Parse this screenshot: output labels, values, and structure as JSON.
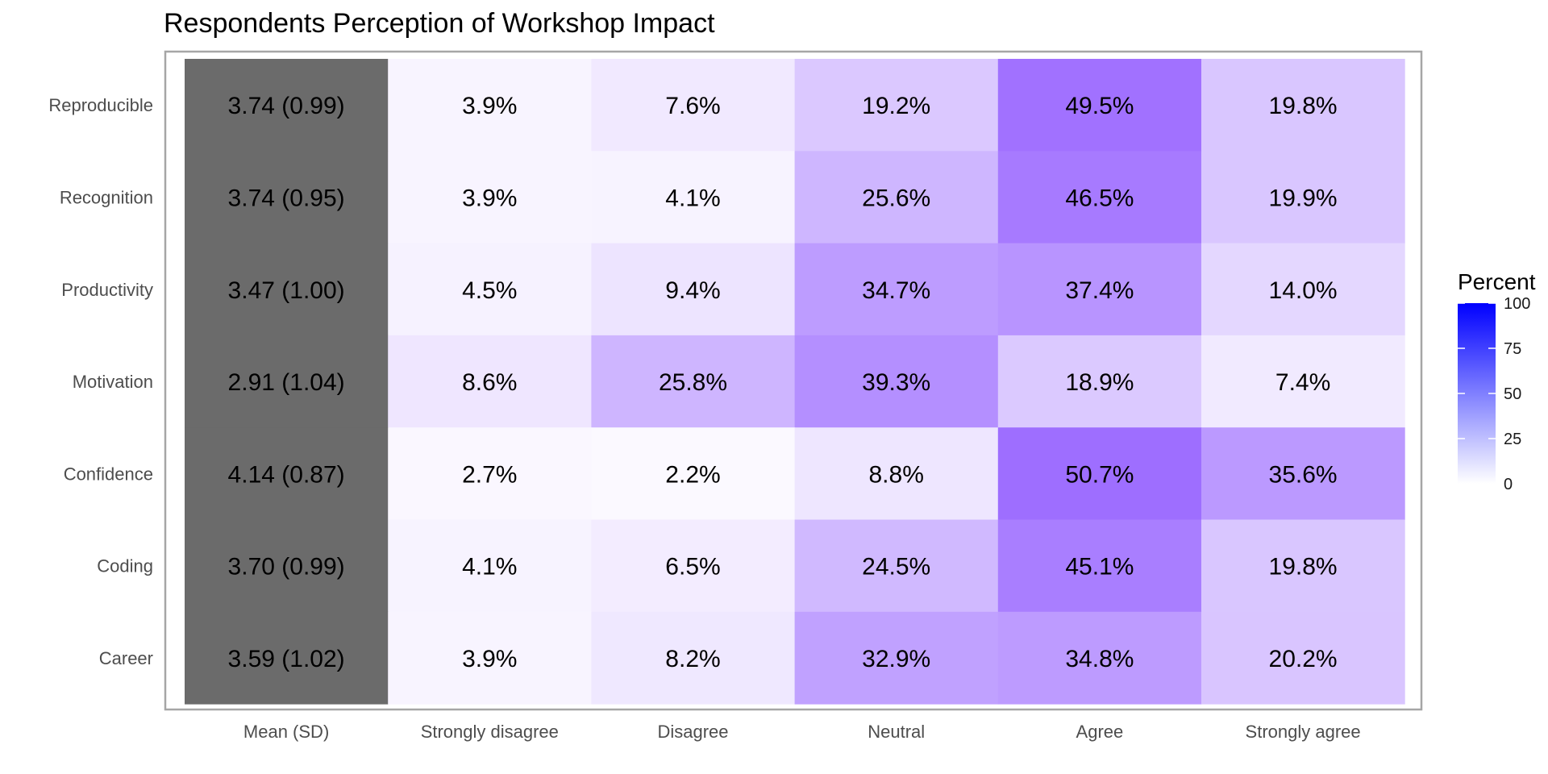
{
  "chart_data": {
    "type": "heatmap",
    "title": "Respondents Perception of Workshop Impact",
    "columns": [
      "Mean (SD)",
      "Strongly disagree",
      "Disagree",
      "Neutral",
      "Agree",
      "Strongly agree"
    ],
    "rows": [
      "Reproducible",
      "Recognition",
      "Productivity",
      "Motivation",
      "Confidence",
      "Coding",
      "Career"
    ],
    "mean_sd": [
      "3.74 (0.99)",
      "3.74 (0.95)",
      "3.47 (1.00)",
      "2.91 (1.04)",
      "4.14 (0.87)",
      "3.70 (0.99)",
      "3.59 (1.02)"
    ],
    "percent_values": [
      [
        3.9,
        7.6,
        19.2,
        49.5,
        19.8
      ],
      [
        3.9,
        4.1,
        25.6,
        46.5,
        19.9
      ],
      [
        4.5,
        9.4,
        34.7,
        37.4,
        14.0
      ],
      [
        8.6,
        25.8,
        39.3,
        18.9,
        7.4
      ],
      [
        2.7,
        2.2,
        8.8,
        50.7,
        35.6
      ],
      [
        4.1,
        6.5,
        24.5,
        45.1,
        19.8
      ],
      [
        3.9,
        8.2,
        32.9,
        34.8,
        20.2
      ]
    ],
    "percent_labels": [
      [
        "3.9%",
        "7.6%",
        "19.2%",
        "49.5%",
        "19.8%"
      ],
      [
        "3.9%",
        "4.1%",
        "25.6%",
        "46.5%",
        "19.9%"
      ],
      [
        "4.5%",
        "9.4%",
        "34.7%",
        "37.4%",
        "14.0%"
      ],
      [
        "8.6%",
        "25.8%",
        "39.3%",
        "18.9%",
        "7.4%"
      ],
      [
        "2.7%",
        "2.2%",
        "8.8%",
        "50.7%",
        "35.6%"
      ],
      [
        "4.1%",
        "6.5%",
        "24.5%",
        "45.1%",
        "19.8%"
      ],
      [
        "3.9%",
        "8.2%",
        "32.9%",
        "34.8%",
        "20.2%"
      ]
    ],
    "legend": {
      "title": "Percent",
      "ticks": [
        100,
        75,
        50,
        25,
        0
      ],
      "tick_labels": [
        "100",
        "75",
        "50",
        "25",
        "0"
      ],
      "range": [
        0,
        100
      ],
      "low_color": "#ffffff",
      "high_color": "#0000ff",
      "placement": "right"
    },
    "mean_column_color": "#6b6b6b",
    "panel_border_color": "#a6a6a6",
    "grid": false
  }
}
